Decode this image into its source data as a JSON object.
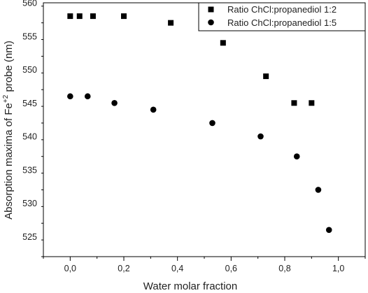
{
  "chart_data": {
    "type": "scatter",
    "xlabel": "Water molar fraction",
    "ylabel_parts": {
      "prefix": "Absorption maxima of Fe",
      "superscript": "+2",
      "suffix": " probe (nm)"
    },
    "xlim": [
      -0.1,
      1.1
    ],
    "ylim": [
      522,
      560
    ],
    "x_ticks": [
      0.0,
      0.2,
      0.4,
      0.6,
      0.8,
      1.0
    ],
    "x_tick_labels": [
      "0,0",
      "0,2",
      "0,4",
      "0,6",
      "0,8",
      "1,0"
    ],
    "y_ticks": [
      525,
      530,
      535,
      540,
      545,
      550,
      555,
      560
    ],
    "y_tick_labels": [
      "525",
      "530",
      "535",
      "540",
      "545",
      "550",
      "555",
      "560"
    ],
    "grid": false,
    "legend_position": "top-right",
    "series": [
      {
        "name": "Ratio ChCl:propanediol 1:2",
        "marker": "square",
        "color": "#000000",
        "points": [
          {
            "x": 0.0,
            "y": 558
          },
          {
            "x": 0.035,
            "y": 558
          },
          {
            "x": 0.085,
            "y": 558
          },
          {
            "x": 0.2,
            "y": 558
          },
          {
            "x": 0.375,
            "y": 557
          },
          {
            "x": 0.57,
            "y": 554
          },
          {
            "x": 0.73,
            "y": 549
          },
          {
            "x": 0.835,
            "y": 545
          },
          {
            "x": 0.9,
            "y": 545
          }
        ]
      },
      {
        "name": "Ratio ChCl:propanediol 1:5",
        "marker": "circle",
        "color": "#000000",
        "points": [
          {
            "x": 0.0,
            "y": 546
          },
          {
            "x": 0.065,
            "y": 546
          },
          {
            "x": 0.165,
            "y": 545
          },
          {
            "x": 0.31,
            "y": 544
          },
          {
            "x": 0.53,
            "y": 542
          },
          {
            "x": 0.71,
            "y": 540
          },
          {
            "x": 0.845,
            "y": 537
          },
          {
            "x": 0.925,
            "y": 532
          },
          {
            "x": 0.965,
            "y": 526
          }
        ]
      }
    ]
  }
}
